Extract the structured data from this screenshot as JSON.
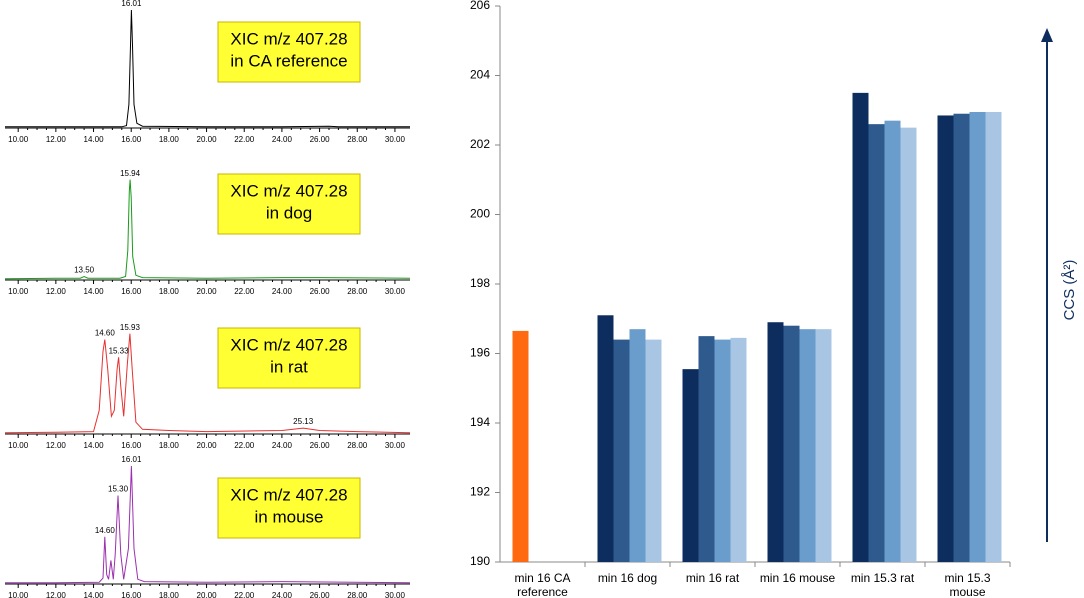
{
  "chart_data": [
    {
      "type": "line",
      "title": [
        "XIC m/z 407.28",
        "in CA reference"
      ],
      "color": "#000000",
      "x": [
        9.3,
        12,
        14,
        15.5,
        15.75,
        15.88,
        15.96,
        16.01,
        16.07,
        16.15,
        16.3,
        16.6,
        20,
        24,
        26.5,
        27,
        30.8
      ],
      "values": [
        1,
        1,
        1,
        1,
        2,
        20,
        70,
        100,
        70,
        20,
        4,
        1.5,
        1,
        1,
        1.5,
        1,
        1
      ],
      "xlim": [
        9.3,
        30.8
      ],
      "ylim": [
        0,
        100
      ],
      "xticks": [
        {
          "value": 10,
          "label": "10.00"
        },
        {
          "value": 12,
          "label": "12.00"
        },
        {
          "value": 14,
          "label": "14.00"
        },
        {
          "value": 16,
          "label": "16.00"
        },
        {
          "value": 18,
          "label": "18.00"
        },
        {
          "value": 20,
          "label": "20.00"
        },
        {
          "value": 22,
          "label": "22.00"
        },
        {
          "value": 24,
          "label": "24.00"
        },
        {
          "value": 26,
          "label": "26.00"
        },
        {
          "value": 28,
          "label": "28.00"
        },
        {
          "value": 30,
          "label": "30.00"
        }
      ],
      "annotations": [
        {
          "value": 16.01,
          "label": "16.01"
        }
      ]
    },
    {
      "type": "line",
      "title": [
        "XIC m/z 407.28",
        "in dog"
      ],
      "color": "#1a9a1a",
      "x": [
        9.3,
        12,
        13.3,
        13.5,
        13.7,
        15.4,
        15.7,
        15.82,
        15.9,
        15.94,
        16.0,
        16.08,
        16.25,
        16.6,
        20,
        24,
        26,
        30.8
      ],
      "values": [
        1,
        1.5,
        1.5,
        3,
        1.5,
        1.5,
        3,
        25,
        75,
        85,
        70,
        20,
        4,
        2,
        1.5,
        2,
        2,
        1.5
      ],
      "xlim": [
        9.3,
        30.8
      ],
      "ylim": [
        0,
        100
      ],
      "xticks": [
        {
          "value": 10,
          "label": "10.00"
        },
        {
          "value": 12,
          "label": "12.00"
        },
        {
          "value": 14,
          "label": "14.00"
        },
        {
          "value": 16,
          "label": "16.00"
        },
        {
          "value": 18,
          "label": "18.00"
        },
        {
          "value": 20,
          "label": "20.00"
        },
        {
          "value": 22,
          "label": "22.00"
        },
        {
          "value": 24,
          "label": "24.00"
        },
        {
          "value": 26,
          "label": "26.00"
        },
        {
          "value": 28,
          "label": "28.00"
        },
        {
          "value": 30,
          "label": "30.00"
        }
      ],
      "annotations": [
        {
          "value": 15.94,
          "label": "15.94"
        },
        {
          "value": 13.5,
          "label": "13.50"
        }
      ]
    },
    {
      "type": "line",
      "title": [
        "XIC m/z 407.28",
        "in rat"
      ],
      "color": "#e83030",
      "x": [
        9.3,
        12,
        14.0,
        14.3,
        14.5,
        14.6,
        14.75,
        14.95,
        15.1,
        15.25,
        15.33,
        15.45,
        15.6,
        15.8,
        15.93,
        16.05,
        16.25,
        16.6,
        18,
        20,
        24,
        25.13,
        26,
        28,
        30.8
      ],
      "values": [
        1,
        1.5,
        2,
        20,
        70,
        80,
        55,
        15,
        20,
        55,
        65,
        40,
        15,
        60,
        85,
        55,
        10,
        4,
        3,
        2,
        3,
        5,
        3,
        2,
        1
      ],
      "xlim": [
        9.3,
        30.8
      ],
      "ylim": [
        0,
        100
      ],
      "xticks": [
        {
          "value": 10,
          "label": "10.00"
        },
        {
          "value": 12,
          "label": "12.00"
        },
        {
          "value": 14,
          "label": "14.00"
        },
        {
          "value": 16,
          "label": "16.00"
        },
        {
          "value": 18,
          "label": "18.00"
        },
        {
          "value": 20,
          "label": "20.00"
        },
        {
          "value": 22,
          "label": "22.00"
        },
        {
          "value": 24,
          "label": "24.00"
        },
        {
          "value": 26,
          "label": "26.00"
        },
        {
          "value": 28,
          "label": "28.00"
        },
        {
          "value": 30,
          "label": "30.00"
        }
      ],
      "annotations": [
        {
          "value": 14.6,
          "label": "14.60"
        },
        {
          "value": 15.33,
          "label": "15.33"
        },
        {
          "value": 15.93,
          "label": "15.93"
        },
        {
          "value": 25.13,
          "label": "25.13"
        }
      ]
    },
    {
      "type": "line",
      "title": [
        "XIC m/z 407.28",
        "in mouse"
      ],
      "color": "#9b30b0",
      "x": [
        9.3,
        12,
        14.3,
        14.5,
        14.6,
        14.7,
        14.8,
        14.92,
        15.05,
        15.15,
        15.3,
        15.45,
        15.6,
        15.85,
        16.01,
        16.15,
        16.35,
        16.7,
        20,
        24,
        30.8
      ],
      "values": [
        1,
        1,
        1.5,
        5,
        40,
        8,
        4,
        20,
        4,
        25,
        75,
        25,
        4,
        30,
        100,
        30,
        4,
        2,
        1.5,
        2,
        1
      ],
      "xlim": [
        9.3,
        30.8
      ],
      "ylim": [
        0,
        100
      ],
      "xticks": [
        {
          "value": 10,
          "label": "10.00"
        },
        {
          "value": 12,
          "label": "12.00"
        },
        {
          "value": 14,
          "label": "14.00"
        },
        {
          "value": 16,
          "label": "16.00"
        },
        {
          "value": 18,
          "label": "18.00"
        },
        {
          "value": 20,
          "label": "20.00"
        },
        {
          "value": 22,
          "label": "22.00"
        },
        {
          "value": 24,
          "label": "24.00"
        },
        {
          "value": 26,
          "label": "26.00"
        },
        {
          "value": 28,
          "label": "28.00"
        },
        {
          "value": 30,
          "label": "30.00"
        }
      ],
      "annotations": [
        {
          "value": 14.6,
          "label": "14.60"
        },
        {
          "value": 15.3,
          "label": "15.30"
        },
        {
          "value": 16.01,
          "label": "16.01"
        }
      ]
    },
    {
      "type": "bar",
      "y_label": "CCS (Å²)",
      "categories": [
        "min 16 CA reference",
        "min 16 dog",
        "min 16 rat",
        "min 16 mouse",
        "min 15.3 rat",
        "min 15.3 mouse"
      ],
      "series": [
        {
          "color": "#0d2d5e",
          "colors": [
            "#ff6a10",
            "#0d2d5e",
            "#0d2d5e",
            "#0d2d5e",
            "#0d2d5e",
            "#0d2d5e"
          ],
          "values": [
            196.65,
            197.1,
            195.55,
            196.9,
            203.5,
            202.85
          ]
        },
        {
          "color": "#2e5a8e",
          "values": [
            null,
            196.4,
            196.5,
            196.8,
            202.6,
            202.9
          ]
        },
        {
          "color": "#6a9ccc",
          "values": [
            null,
            196.7,
            196.4,
            196.7,
            202.7,
            202.95
          ]
        },
        {
          "color": "#a8c6e4",
          "values": [
            null,
            196.4,
            196.45,
            196.7,
            202.5,
            202.95
          ]
        }
      ],
      "ylim": [
        190,
        206
      ],
      "yticks": [
        190,
        192,
        194,
        196,
        198,
        200,
        202,
        204,
        206
      ]
    }
  ]
}
